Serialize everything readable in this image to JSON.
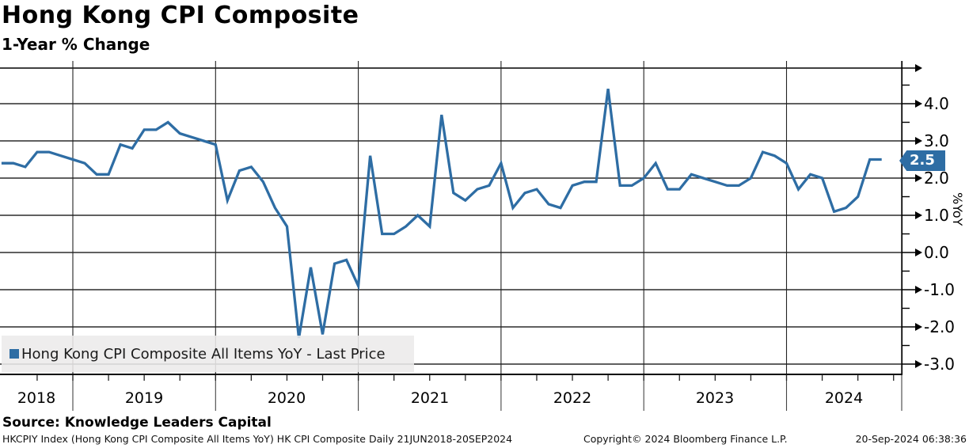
{
  "header": {
    "title": "Hong Kong CPI Composite",
    "subtitle": "1-Year % Change"
  },
  "chart_data": {
    "type": "line",
    "title": "Hong Kong CPI Composite",
    "subtitle": "1-Year % Change",
    "xlabel": "",
    "ylabel": "%YoY",
    "ylim": [
      -3.3,
      5.0
    ],
    "grid": true,
    "legend_position": "bottom-left",
    "yticks": [
      {
        "value": 4.0,
        "label": "4.0"
      },
      {
        "value": 3.0,
        "label": "3.0"
      },
      {
        "value": 2.0,
        "label": "2.0"
      },
      {
        "value": 1.0,
        "label": "1.0"
      },
      {
        "value": 0.0,
        "label": "0.0"
      },
      {
        "value": -1.0,
        "label": "-1.0"
      },
      {
        "value": -2.0,
        "label": "-2.0"
      },
      {
        "value": -3.0,
        "label": "-3.0"
      }
    ],
    "ytick_minor_values": [
      4.5,
      3.5,
      2.5,
      1.5,
      0.5,
      -0.5,
      -1.5,
      -2.5
    ],
    "xticks": [
      "2018",
      "2019",
      "2020",
      "2021",
      "2022",
      "2023",
      "2024"
    ],
    "x_range": [
      "2018-06",
      "2024-08"
    ],
    "last_price": {
      "value": "2.5",
      "color": "#2E6DA4"
    },
    "line_color": "#2E6DA4",
    "series": [
      {
        "name": "Hong Kong CPI Composite All Items YoY - Last Price",
        "color": "#2E6DA4",
        "points": [
          [
            "2018-06",
            2.4
          ],
          [
            "2018-07",
            2.4
          ],
          [
            "2018-08",
            2.3
          ],
          [
            "2018-09",
            2.7
          ],
          [
            "2018-10",
            2.7
          ],
          [
            "2018-11",
            2.6
          ],
          [
            "2018-12",
            2.5
          ],
          [
            "2019-01",
            2.4
          ],
          [
            "2019-02",
            2.1
          ],
          [
            "2019-03",
            2.1
          ],
          [
            "2019-04",
            2.9
          ],
          [
            "2019-05",
            2.8
          ],
          [
            "2019-06",
            3.3
          ],
          [
            "2019-07",
            3.3
          ],
          [
            "2019-08",
            3.5
          ],
          [
            "2019-09",
            3.2
          ],
          [
            "2019-10",
            3.1
          ],
          [
            "2019-11",
            3.0
          ],
          [
            "2019-12",
            2.9
          ],
          [
            "2020-01",
            1.4
          ],
          [
            "2020-02",
            2.2
          ],
          [
            "2020-03",
            2.3
          ],
          [
            "2020-04",
            1.9
          ],
          [
            "2020-05",
            1.2
          ],
          [
            "2020-06",
            0.7
          ],
          [
            "2020-07",
            -2.3
          ],
          [
            "2020-08",
            -0.4
          ],
          [
            "2020-09",
            -2.2
          ],
          [
            "2020-10",
            -0.3
          ],
          [
            "2020-11",
            -0.2
          ],
          [
            "2020-12",
            -0.9
          ],
          [
            "2021-01",
            2.6
          ],
          [
            "2021-02",
            0.5
          ],
          [
            "2021-03",
            0.5
          ],
          [
            "2021-04",
            0.7
          ],
          [
            "2021-05",
            1.0
          ],
          [
            "2021-06",
            0.7
          ],
          [
            "2021-07",
            3.7
          ],
          [
            "2021-08",
            1.6
          ],
          [
            "2021-09",
            1.4
          ],
          [
            "2021-10",
            1.7
          ],
          [
            "2021-11",
            1.8
          ],
          [
            "2021-12",
            2.4
          ],
          [
            "2022-01",
            1.2
          ],
          [
            "2022-02",
            1.6
          ],
          [
            "2022-03",
            1.7
          ],
          [
            "2022-04",
            1.3
          ],
          [
            "2022-05",
            1.2
          ],
          [
            "2022-06",
            1.8
          ],
          [
            "2022-07",
            1.9
          ],
          [
            "2022-08",
            1.9
          ],
          [
            "2022-09",
            4.4
          ],
          [
            "2022-10",
            1.8
          ],
          [
            "2022-11",
            1.8
          ],
          [
            "2022-12",
            2.0
          ],
          [
            "2023-01",
            2.4
          ],
          [
            "2023-02",
            1.7
          ],
          [
            "2023-03",
            1.7
          ],
          [
            "2023-04",
            2.1
          ],
          [
            "2023-05",
            2.0
          ],
          [
            "2023-06",
            1.9
          ],
          [
            "2023-07",
            1.8
          ],
          [
            "2023-08",
            1.8
          ],
          [
            "2023-09",
            2.0
          ],
          [
            "2023-10",
            2.7
          ],
          [
            "2023-11",
            2.6
          ],
          [
            "2023-12",
            2.4
          ],
          [
            "2024-01",
            1.7
          ],
          [
            "2024-02",
            2.1
          ],
          [
            "2024-03",
            2.0
          ],
          [
            "2024-04",
            1.1
          ],
          [
            "2024-05",
            1.2
          ],
          [
            "2024-06",
            1.5
          ],
          [
            "2024-07",
            2.5
          ],
          [
            "2024-08",
            2.5
          ]
        ]
      }
    ]
  },
  "legend": {
    "label": "Hong Kong CPI Composite All Items YoY - Last Price"
  },
  "footer": {
    "source": "Source: Knowledge Leaders Capital",
    "meta_left": "HKCPIY Index (Hong Kong CPI Composite All Items YoY) HK CPI Composite  Daily 21JUN2018-20SEP2024",
    "meta_center": "Copyright© 2024 Bloomberg Finance L.P.",
    "meta_right": "20-Sep-2024 06:38:36"
  }
}
